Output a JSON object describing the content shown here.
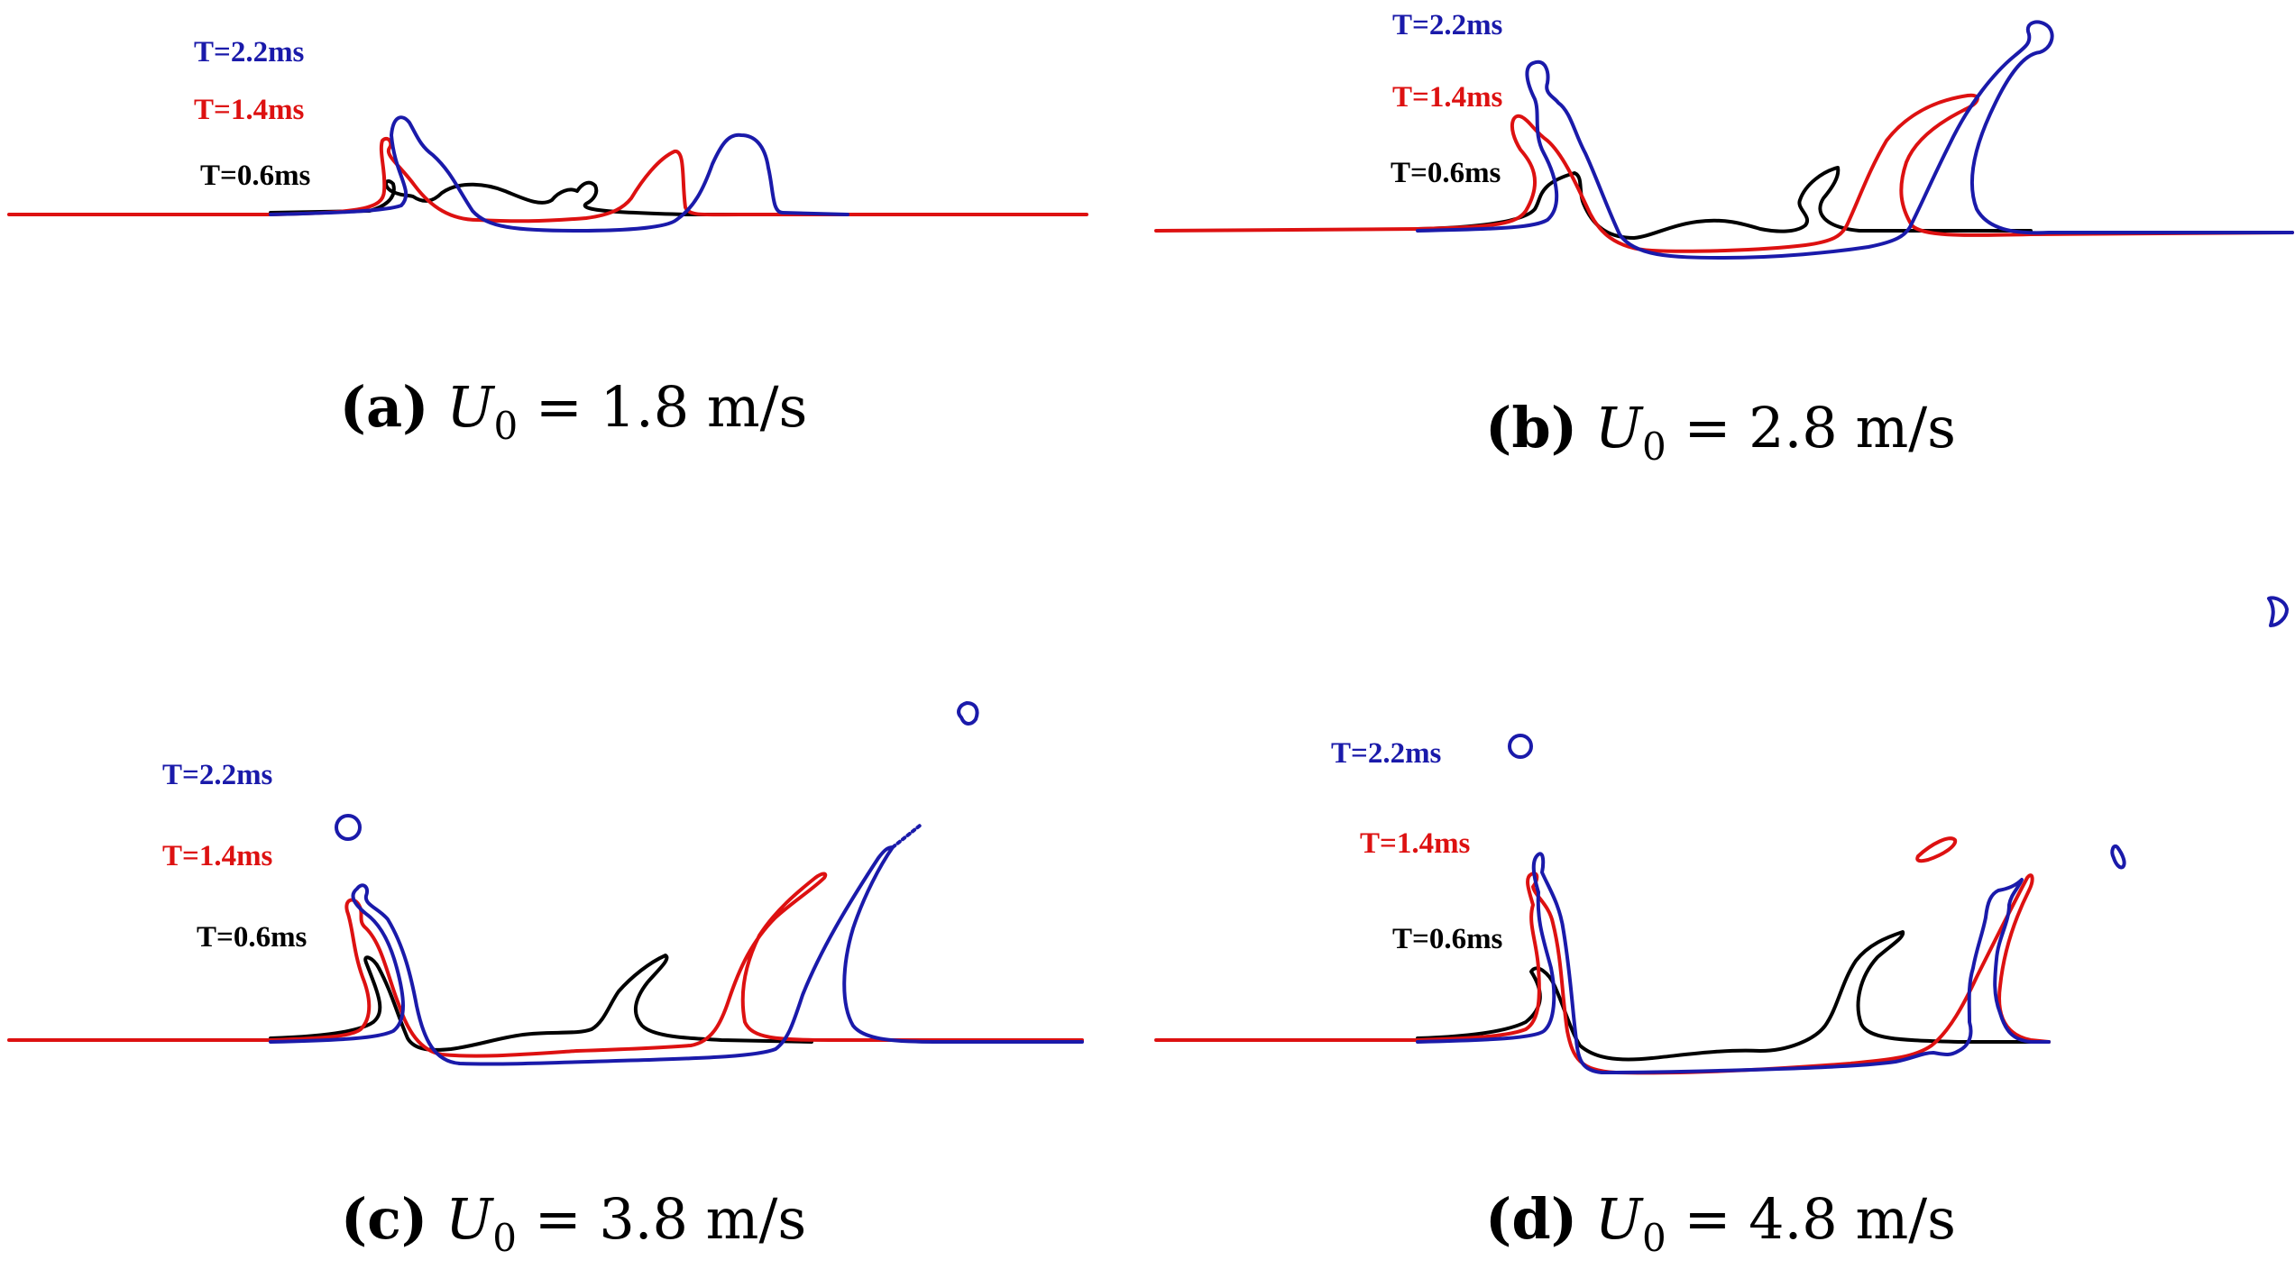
{
  "colors": {
    "t06": "#000000",
    "t14": "#dd1111",
    "t22": "#1a1aaa"
  },
  "legend": {
    "t22": "T=2.2ms",
    "t14": "T=1.4ms",
    "t06": "T=0.6ms"
  },
  "panels": {
    "a": {
      "letter": "(a)",
      "var": "U",
      "sub": "0",
      "rest": " = 1.8 m/s"
    },
    "b": {
      "letter": "(b)",
      "var": "U",
      "sub": "0",
      "rest": " = 2.8 m/s"
    },
    "c": {
      "letter": "(c)",
      "var": "U",
      "sub": "0",
      "rest": " = 3.8 m/s"
    },
    "d": {
      "letter": "(d)",
      "var": "U",
      "sub": "0",
      "rest": " = 4.8 m/s"
    }
  }
}
